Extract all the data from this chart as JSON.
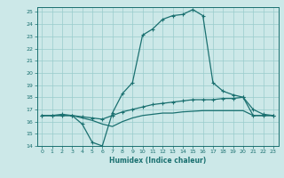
{
  "xlabel": "Humidex (Indice chaleur)",
  "xlim": [
    -0.5,
    23.5
  ],
  "ylim": [
    14,
    25.4
  ],
  "yticks": [
    14,
    15,
    16,
    17,
    18,
    19,
    20,
    21,
    22,
    23,
    24,
    25
  ],
  "xticks": [
    0,
    1,
    2,
    3,
    4,
    5,
    6,
    7,
    8,
    9,
    10,
    11,
    12,
    13,
    14,
    15,
    16,
    17,
    18,
    19,
    20,
    21,
    22,
    23
  ],
  "bg_color": "#cce8e8",
  "line_color": "#1a7070",
  "grid_color": "#99cccc",
  "series1_x": [
    0,
    1,
    2,
    3,
    4,
    5,
    6,
    7,
    8,
    9,
    10,
    11,
    12,
    13,
    14,
    15,
    16,
    17,
    18,
    19,
    20,
    21,
    22,
    23
  ],
  "series1_y": [
    16.5,
    16.5,
    16.6,
    16.5,
    15.8,
    14.3,
    14.0,
    16.7,
    18.3,
    19.2,
    23.1,
    23.6,
    24.4,
    24.7,
    24.8,
    25.2,
    24.7,
    19.2,
    18.5,
    18.2,
    18.0,
    17.0,
    16.6,
    16.5
  ],
  "series2_x": [
    0,
    1,
    2,
    3,
    4,
    5,
    6,
    7,
    8,
    9,
    10,
    11,
    12,
    13,
    14,
    15,
    16,
    17,
    18,
    19,
    20,
    21,
    22,
    23
  ],
  "series2_y": [
    16.5,
    16.5,
    16.5,
    16.5,
    16.4,
    16.3,
    16.2,
    16.5,
    16.8,
    17.0,
    17.2,
    17.4,
    17.5,
    17.6,
    17.7,
    17.8,
    17.8,
    17.8,
    17.9,
    17.9,
    18.0,
    16.5,
    16.5,
    16.5
  ],
  "series3_x": [
    0,
    1,
    2,
    3,
    4,
    5,
    6,
    7,
    8,
    9,
    10,
    11,
    12,
    13,
    14,
    15,
    16,
    17,
    18,
    19,
    20,
    21,
    22,
    23
  ],
  "series3_y": [
    16.5,
    16.5,
    16.5,
    16.5,
    16.3,
    16.1,
    15.8,
    15.6,
    16.0,
    16.3,
    16.5,
    16.6,
    16.7,
    16.7,
    16.8,
    16.85,
    16.9,
    16.9,
    16.9,
    16.9,
    16.9,
    16.5,
    16.5,
    16.5
  ]
}
